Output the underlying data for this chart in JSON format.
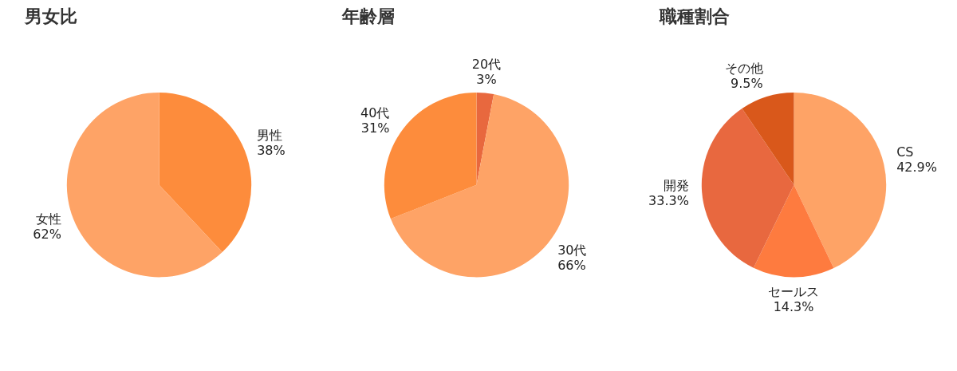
{
  "chart_data": [
    {
      "type": "pie",
      "title": "男女比",
      "categories": [
        "男性",
        "女性"
      ],
      "values": [
        38,
        62
      ],
      "value_labels": [
        "38%",
        "62%"
      ],
      "colors": [
        "#fd8c3c",
        "#fea366"
      ]
    },
    {
      "type": "pie",
      "title": "年齢層",
      "categories": [
        "20代",
        "30代",
        "40代"
      ],
      "values": [
        3,
        66,
        31
      ],
      "value_labels": [
        "3%",
        "66%",
        "31%"
      ],
      "colors": [
        "#e8683e",
        "#fea366",
        "#fd8c3c"
      ]
    },
    {
      "type": "pie",
      "title": "職種割合",
      "categories": [
        "CS",
        "セールス",
        "開発",
        "その他"
      ],
      "values": [
        42.9,
        14.3,
        33.3,
        9.5
      ],
      "value_labels": [
        "42.9%",
        "14.3%",
        "33.3%",
        "9.5%"
      ],
      "colors": [
        "#fea366",
        "#fe7b3f",
        "#e8683f",
        "#d9581b"
      ]
    }
  ]
}
